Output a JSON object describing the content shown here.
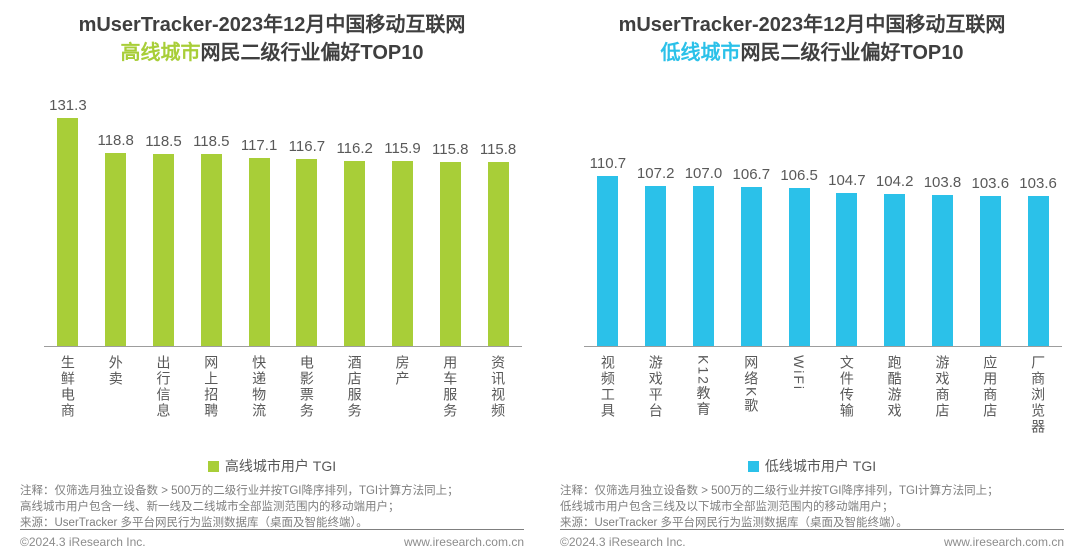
{
  "panels": [
    {
      "title_line1": "mUserTracker-2023年12月中国移动互联网",
      "title_highlight": "高线城市",
      "title_rest": "网民二级行业偏好TOP10",
      "highlight_color": "#a8ce38",
      "notes": [
        "注释：仅筛选月独立设备数 > 500万的二级行业并按TGI降序排列，TGI计算方法同上；",
        "高线城市用户包含一线、新一线及二线城市全部监测范围内的移动端用户；",
        "来源：UserTracker 多平台网民行为监测数据库（桌面及智能终端）。"
      ],
      "footer_left": "©2024.3 iResearch Inc.",
      "footer_right": "www.iresearch.com.cn"
    },
    {
      "title_line1": "mUserTracker-2023年12月中国移动互联网",
      "title_highlight": "低线城市",
      "title_rest": "网民二级行业偏好TOP10",
      "highlight_color": "#2bc1e9",
      "notes": [
        "注释：仅筛选月独立设备数 > 500万的二级行业并按TGI降序排列，TGI计算方法同上；",
        "低线城市用户包含三线及以下城市全部监测范围内的移动端用户；",
        "来源：UserTracker 多平台网民行为监测数据库（桌面及智能终端）。"
      ],
      "footer_left": "©2024.3 iResearch Inc.",
      "footer_right": "www.iresearch.com.cn"
    }
  ],
  "chart_data": [
    {
      "type": "bar",
      "title": "mUserTracker-2023年12月中国移动互联网 高线城市网民二级行业偏好TOP10",
      "categories": [
        "生鲜电商",
        "外卖",
        "出行信息",
        "网上招聘",
        "快递物流",
        "电影票务",
        "酒店服务",
        "房产",
        "用车服务",
        "资讯视频"
      ],
      "values": [
        131.3,
        118.8,
        118.5,
        118.5,
        117.1,
        116.7,
        116.2,
        115.9,
        115.8,
        115.8
      ],
      "bar_color": "#a8ce38",
      "legend": "高线城市用户 TGI",
      "legend_position": "bottom",
      "xlabel": "",
      "ylabel": "TGI",
      "ylim": [
        50,
        135
      ],
      "grid": false,
      "value_labels": true
    },
    {
      "type": "bar",
      "title": "mUserTracker-2023年12月中国移动互联网 低线城市网民二级行业偏好TOP10",
      "categories": [
        "视频工具",
        "游戏平台",
        "K12教育",
        "网络K歌",
        "WiFi",
        "文件传输",
        "跑酷游戏",
        "游戏商店",
        "应用商店",
        "厂商浏览器"
      ],
      "values": [
        110.7,
        107.2,
        107.0,
        106.7,
        106.5,
        104.7,
        104.2,
        103.8,
        103.6,
        103.6
      ],
      "bar_color": "#2bc1e9",
      "legend": "低线城市用户 TGI",
      "legend_position": "bottom",
      "xlabel": "",
      "ylabel": "TGI",
      "ylim": [
        50,
        135
      ],
      "grid": false,
      "value_labels": true
    }
  ]
}
